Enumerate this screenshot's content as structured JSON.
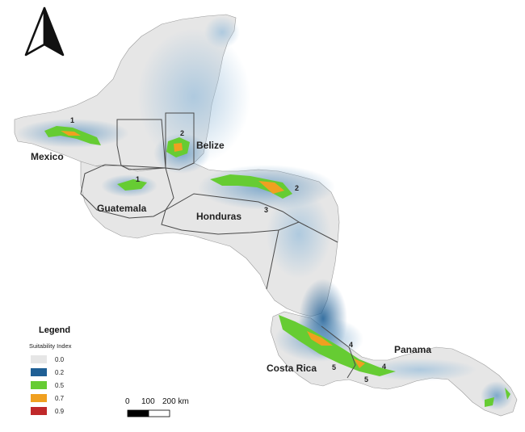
{
  "north_arrow": {
    "icon": "north-arrow-icon"
  },
  "countries": {
    "mexico": "Mexico",
    "belize": "Belize",
    "guatemala": "Guatemala",
    "honduras": "Honduras",
    "costa_rica": "Costa Rica",
    "panama": "Panama"
  },
  "region_labels": {
    "mx1": "1",
    "bz2": "2",
    "gt1": "1",
    "hn2": "2",
    "hn3": "3",
    "cr4": "4",
    "cr5": "5",
    "pa4": "4",
    "pa5": "5"
  },
  "scale_bar": {
    "tick_0": "0",
    "tick_100": "100",
    "tick_200": "200 km"
  },
  "legend": {
    "title": "Legend",
    "subtitle": "Suitability Index",
    "items": [
      {
        "label": "0.0",
        "color": "#e6e6e6"
      },
      {
        "label": "0.2",
        "color": "#1f5f95"
      },
      {
        "label": "0.5",
        "color": "#66cc33"
      },
      {
        "label": "0.7",
        "color": "#f0a020"
      },
      {
        "label": "0.9",
        "color": "#c0282a"
      }
    ]
  }
}
